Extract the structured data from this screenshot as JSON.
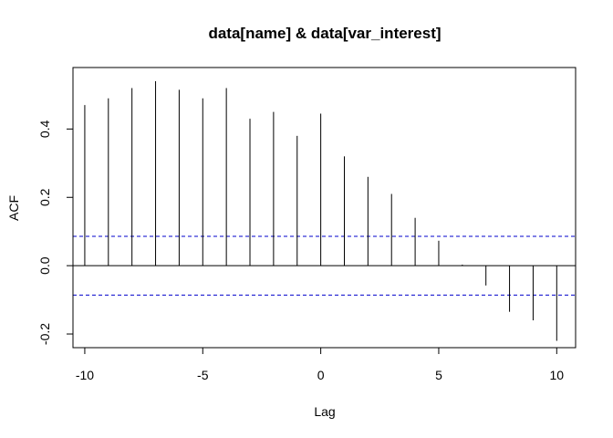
{
  "chart_data": {
    "type": "bar",
    "title": "data[name] & data[var_interest]",
    "xlabel": "Lag",
    "ylabel": "ACF",
    "xlim": [
      -10.5,
      10.8
    ],
    "ylim": [
      -0.24,
      0.58
    ],
    "x_ticks": [
      -10,
      -5,
      0,
      5,
      10
    ],
    "y_ticks": [
      -0.2,
      0.0,
      0.2,
      0.4
    ],
    "x_tick_labels": [
      "-10",
      "-5",
      "0",
      "5",
      "10"
    ],
    "y_tick_labels": [
      "-0.2",
      "0.0",
      "0.2",
      "0.4"
    ],
    "lags": [
      -10,
      -9,
      -8,
      -7,
      -6,
      -5,
      -4,
      -3,
      -2,
      -1,
      0,
      1,
      2,
      3,
      4,
      5,
      6,
      7,
      8,
      9,
      10
    ],
    "acf": [
      0.47,
      0.49,
      0.52,
      0.54,
      0.515,
      0.49,
      0.52,
      0.43,
      0.45,
      0.38,
      0.445,
      0.32,
      0.26,
      0.21,
      0.14,
      0.073,
      0.003,
      -0.058,
      -0.135,
      -0.16,
      -0.22
    ],
    "confidence_bound": 0.086,
    "grid": false,
    "colors": {
      "bars": "#000000",
      "confidence_lines": "#0000cc",
      "zero_line": "#000000"
    }
  }
}
